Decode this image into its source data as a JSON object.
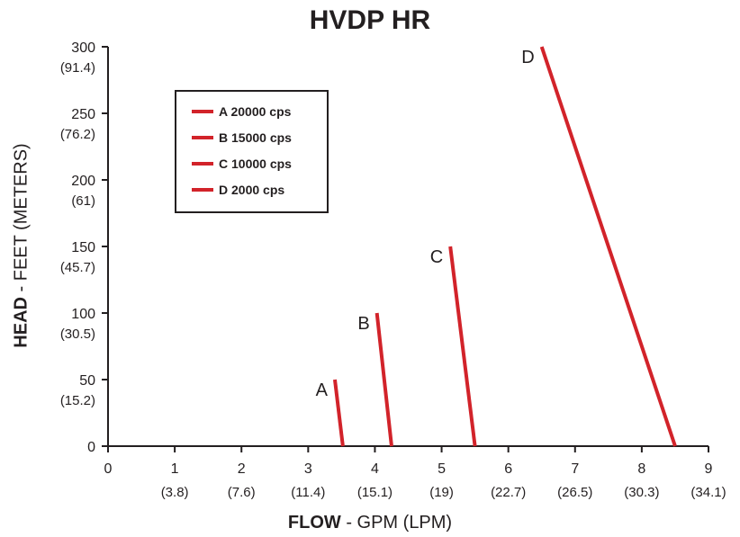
{
  "chart_data": {
    "type": "line",
    "title": "HVDP HR",
    "xlabel_bold": "FLOW",
    "xlabel_rest": " - GPM (LPM)",
    "ylabel_bold": "HEAD",
    "ylabel_rest": " - FEET (METERS)",
    "xlim": [
      0,
      9
    ],
    "ylim": [
      0,
      300
    ],
    "x_ticks": [
      {
        "value": 0,
        "label": "0",
        "sublabel": ""
      },
      {
        "value": 1,
        "label": "1",
        "sublabel": "(3.8)"
      },
      {
        "value": 2,
        "label": "2",
        "sublabel": "(7.6)"
      },
      {
        "value": 3,
        "label": "3",
        "sublabel": "(11.4)"
      },
      {
        "value": 4,
        "label": "4",
        "sublabel": "(15.1)"
      },
      {
        "value": 5,
        "label": "5",
        "sublabel": "(19)"
      },
      {
        "value": 6,
        "label": "6",
        "sublabel": "(22.7)"
      },
      {
        "value": 7,
        "label": "7",
        "sublabel": "(26.5)"
      },
      {
        "value": 8,
        "label": "8",
        "sublabel": "(30.3)"
      },
      {
        "value": 9,
        "label": "9",
        "sublabel": "(34.1)"
      }
    ],
    "y_ticks": [
      {
        "value": 0,
        "label": "0",
        "sublabel": ""
      },
      {
        "value": 50,
        "label": "50",
        "sublabel": "(15.2)"
      },
      {
        "value": 100,
        "label": "100",
        "sublabel": "(30.5)"
      },
      {
        "value": 150,
        "label": "150",
        "sublabel": "(45.7)"
      },
      {
        "value": 200,
        "label": "200",
        "sublabel": "(61)"
      },
      {
        "value": 250,
        "label": "250",
        "sublabel": "(76.2)"
      },
      {
        "value": 300,
        "label": "300",
        "sublabel": "(91.4)"
      }
    ],
    "series": [
      {
        "name": "A 20000 cps",
        "label": "A",
        "x": [
          3.4,
          3.52
        ],
        "y": [
          50,
          0
        ]
      },
      {
        "name": "B 15000 cps",
        "label": "B",
        "x": [
          4.03,
          4.25
        ],
        "y": [
          100,
          0
        ]
      },
      {
        "name": "C 10000 cps",
        "label": "C",
        "x": [
          5.13,
          5.5
        ],
        "y": [
          150,
          0
        ]
      },
      {
        "name": "D 2000 cps",
        "label": "D",
        "x": [
          6.5,
          8.5
        ],
        "y": [
          300,
          0
        ]
      }
    ],
    "line_color": "#d2232a",
    "axis_color": "#231f20",
    "legend_position": "top-left",
    "grid": false
  }
}
